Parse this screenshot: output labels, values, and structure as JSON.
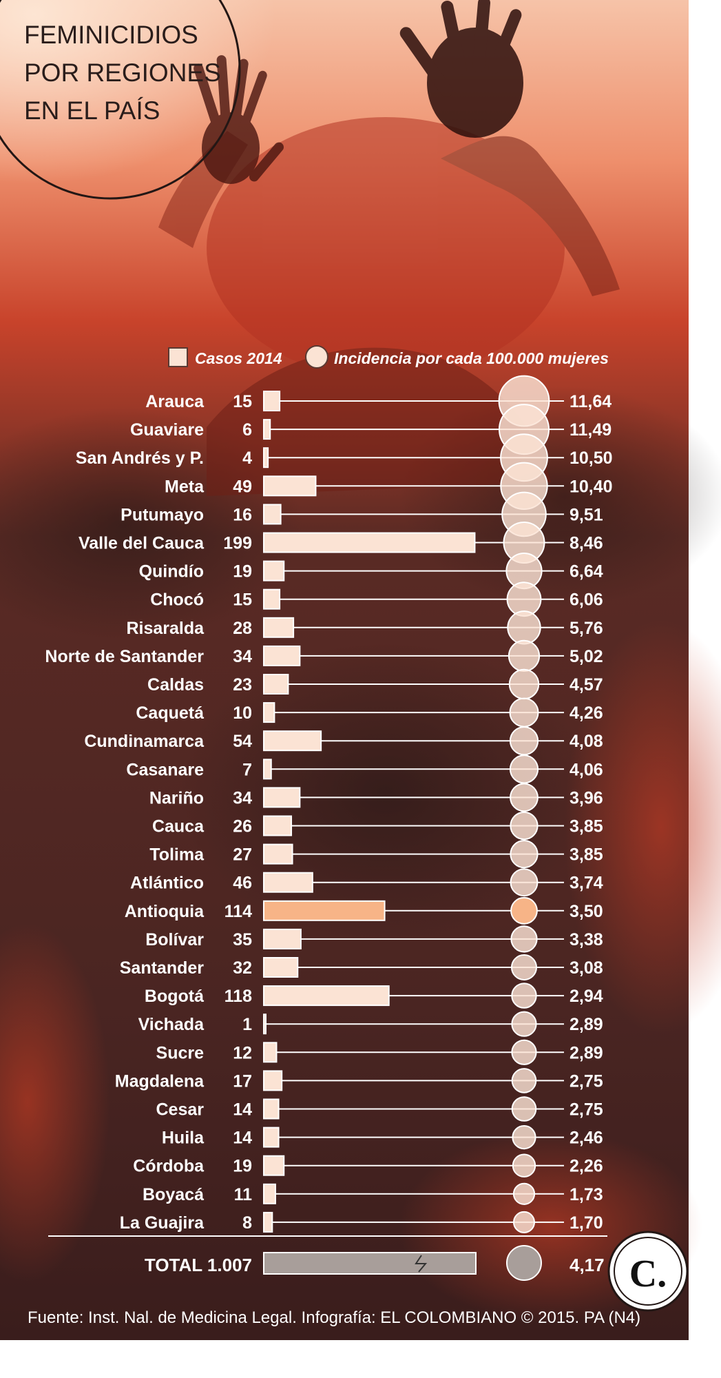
{
  "title_lines": [
    "FEMINICIDIOS",
    "POR REGIONES",
    "EN EL PAÍS"
  ],
  "legend": {
    "cases": "Casos 2014",
    "incidence": "Incidencia por cada 100.000 mujeres"
  },
  "total": {
    "label": "TOTAL 1.007",
    "cases": 1007,
    "incidence": "4,17"
  },
  "source": "Fuente: Inst. Nal. de Medicina Legal. Infografía: EL COLOMBIANO © 2015. PA (N4)",
  "logo_text": "C.",
  "colors": {
    "bar": "#fbe3d4",
    "bar_highlight": "#f7b487",
    "total_bar": "#a89e9a",
    "text": "#ffffff"
  },
  "chart_data": {
    "type": "bar",
    "title": "FEMINICIDIOS POR REGIONES EN EL PAÍS",
    "xlabel": "Casos 2014",
    "ylabel": "",
    "xlim": [
      0,
      200
    ],
    "highlight": "Antioquia",
    "categories": [
      "Arauca",
      "Guaviare",
      "San Andrés y P.",
      "Meta",
      "Putumayo",
      "Valle del Cauca",
      "Quindío",
      "Chocó",
      "Risaralda",
      "Norte de Santander",
      "Caldas",
      "Caquetá",
      "Cundinamarca",
      "Casanare",
      "Nariño",
      "Cauca",
      "Tolima",
      "Atlántico",
      "Antioquia",
      "Bolívar",
      "Santander",
      "Bogotá",
      "Vichada",
      "Sucre",
      "Magdalena",
      "Cesar",
      "Huila",
      "Córdoba",
      "Boyacá",
      "La Guajira"
    ],
    "series": [
      {
        "name": "Casos 2014",
        "values": [
          15,
          6,
          4,
          49,
          16,
          199,
          19,
          15,
          28,
          34,
          23,
          10,
          54,
          7,
          34,
          26,
          27,
          46,
          114,
          35,
          32,
          118,
          1,
          12,
          17,
          14,
          14,
          19,
          11,
          8
        ]
      },
      {
        "name": "Incidencia por cada 100.000 mujeres",
        "values": [
          11.64,
          11.49,
          10.5,
          10.4,
          9.51,
          8.46,
          6.64,
          6.06,
          5.76,
          5.02,
          4.57,
          4.26,
          4.08,
          4.06,
          3.96,
          3.85,
          3.85,
          3.74,
          3.5,
          3.38,
          3.08,
          2.94,
          2.89,
          2.89,
          2.75,
          2.75,
          2.46,
          2.26,
          1.73,
          1.7
        ]
      }
    ],
    "incidence_labels": [
      "11,64",
      "11,49",
      "10,50",
      "10,40",
      "9,51",
      "8,46",
      "6,64",
      "6,06",
      "5,76",
      "5,02",
      "4,57",
      "4,26",
      "4,08",
      "4,06",
      "3,96",
      "3,85",
      "3,85",
      "3,74",
      "3,50",
      "3,38",
      "3,08",
      "2,94",
      "2,89",
      "2,89",
      "2,75",
      "2,75",
      "2,46",
      "2,26",
      "1,73",
      "1,70"
    ]
  }
}
